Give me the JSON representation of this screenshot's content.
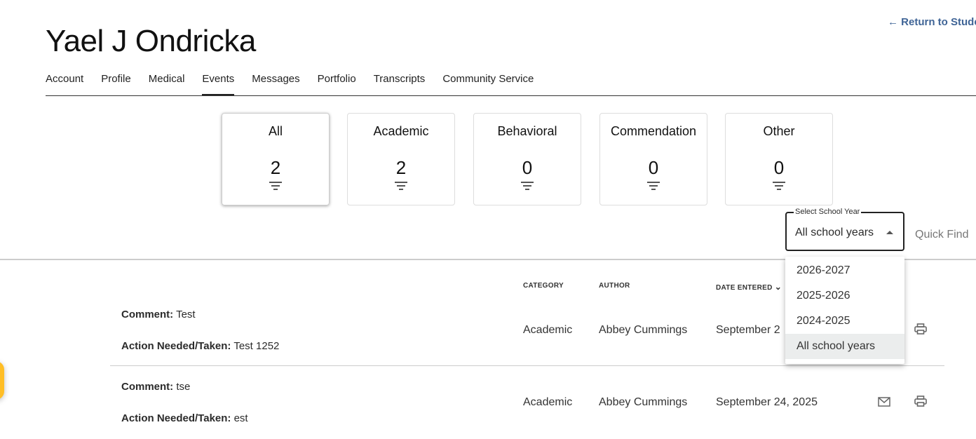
{
  "header": {
    "title": "Yael J Ondricka",
    "return_link": "Return to Stude"
  },
  "tabs": [
    {
      "label": "Account"
    },
    {
      "label": "Profile"
    },
    {
      "label": "Medical"
    },
    {
      "label": "Events",
      "active": true
    },
    {
      "label": "Messages"
    },
    {
      "label": "Portfolio"
    },
    {
      "label": "Transcripts"
    },
    {
      "label": "Community Service"
    }
  ],
  "cards": [
    {
      "label": "All",
      "count": "2"
    },
    {
      "label": "Academic",
      "count": "2"
    },
    {
      "label": "Behavioral",
      "count": "0"
    },
    {
      "label": "Commendation",
      "count": "0"
    },
    {
      "label": "Other",
      "count": "0"
    }
  ],
  "school_year": {
    "label": "Select School Year",
    "value": "All school years",
    "options": [
      "2026-2027",
      "2025-2026",
      "2024-2025",
      "All school years"
    ]
  },
  "quick_find": {
    "placeholder": "Quick Find"
  },
  "table": {
    "headers": [
      "CATEGORY",
      "AUTHOR",
      "DATE ENTERED"
    ],
    "rows": [
      {
        "comment_label": "Comment:",
        "comment": "Test",
        "action_label": "Action Needed/Taken:",
        "action": "Test 1252",
        "category": "Academic",
        "author": "Abbey Cummings",
        "date": "September 2"
      },
      {
        "comment_label": "Comment:",
        "comment": "tse",
        "action_label": "Action Needed/Taken:",
        "action": "est",
        "category": "Academic",
        "author": "Abbey Cummings",
        "date": "September 24, 2025"
      }
    ]
  },
  "colors": {
    "link": "#3f6496",
    "fab": "#ffbe26"
  }
}
